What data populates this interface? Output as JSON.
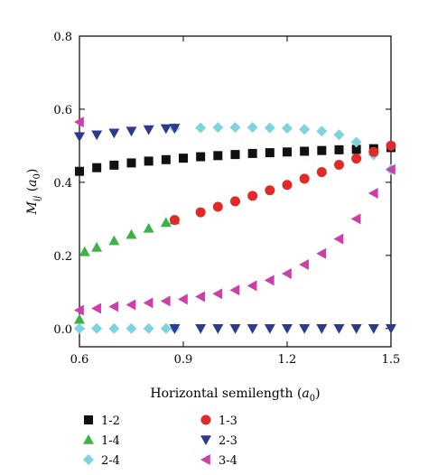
{
  "chart_data": {
    "type": "scatter",
    "xlabel_main": "Horizontal semilength (",
    "xlabel_sym": "a",
    "xlabel_sub": "0",
    "xlabel_end": ")",
    "ylabel_main": "M",
    "ylabel_sub": "ij",
    "ylabel_mid": " (",
    "ylabel_sym": "a",
    "ylabel_sub2": "0",
    "ylabel_end": ")",
    "xlim": [
      0.6,
      1.5
    ],
    "ylim": [
      -0.05,
      0.8
    ],
    "xticks": [
      0.6,
      0.9,
      1.2,
      1.5
    ],
    "xtick_labels": [
      "0.6",
      "0.9",
      "1.2",
      "1.5"
    ],
    "yticks": [
      0.0,
      0.2,
      0.4,
      0.6,
      0.8
    ],
    "ytick_labels": [
      "0.0",
      "0.2",
      "0.4",
      "0.6",
      "0.8"
    ],
    "grid": false,
    "legend_position": "bottom",
    "series": [
      {
        "name": "1-2",
        "marker": "square",
        "color": "#111111",
        "points": [
          [
            0.6,
            0.43
          ],
          [
            0.65,
            0.44
          ],
          [
            0.7,
            0.447
          ],
          [
            0.75,
            0.453
          ],
          [
            0.8,
            0.458
          ],
          [
            0.85,
            0.462
          ],
          [
            0.9,
            0.466
          ],
          [
            0.95,
            0.47
          ],
          [
            1.0,
            0.473
          ],
          [
            1.05,
            0.476
          ],
          [
            1.1,
            0.479
          ],
          [
            1.15,
            0.481
          ],
          [
            1.2,
            0.483
          ],
          [
            1.25,
            0.485
          ],
          [
            1.3,
            0.487
          ],
          [
            1.35,
            0.489
          ],
          [
            1.4,
            0.49
          ],
          [
            1.45,
            0.492
          ],
          [
            1.5,
            0.495
          ]
        ]
      },
      {
        "name": "1-4",
        "marker": "triangle-up",
        "color": "#3cb34a",
        "points": [
          [
            0.6,
            0.025
          ],
          [
            0.615,
            0.21
          ],
          [
            0.65,
            0.222
          ],
          [
            0.7,
            0.24
          ],
          [
            0.75,
            0.257
          ],
          [
            0.8,
            0.274
          ],
          [
            0.85,
            0.29
          ],
          [
            0.875,
            0.297
          ]
        ]
      },
      {
        "name": "2-4",
        "marker": "diamond",
        "color": "#7fd3e0",
        "points": [
          [
            0.6,
            0.0
          ],
          [
            0.65,
            0.0
          ],
          [
            0.7,
            0.0
          ],
          [
            0.75,
            0.0
          ],
          [
            0.8,
            0.0
          ],
          [
            0.85,
            0.0
          ],
          [
            0.875,
            0.0
          ],
          [
            0.875,
            0.548
          ],
          [
            0.95,
            0.549
          ],
          [
            1.0,
            0.55
          ],
          [
            1.05,
            0.55
          ],
          [
            1.1,
            0.55
          ],
          [
            1.15,
            0.549
          ],
          [
            1.2,
            0.548
          ],
          [
            1.25,
            0.545
          ],
          [
            1.3,
            0.54
          ],
          [
            1.35,
            0.53
          ],
          [
            1.4,
            0.51
          ],
          [
            1.45,
            0.475
          ],
          [
            1.5,
            0.435
          ]
        ]
      },
      {
        "name": "1-3",
        "marker": "circle",
        "color": "#e02a2a",
        "points": [
          [
            0.875,
            0.297
          ],
          [
            0.95,
            0.318
          ],
          [
            1.0,
            0.333
          ],
          [
            1.05,
            0.348
          ],
          [
            1.1,
            0.363
          ],
          [
            1.15,
            0.378
          ],
          [
            1.2,
            0.393
          ],
          [
            1.25,
            0.41
          ],
          [
            1.3,
            0.428
          ],
          [
            1.35,
            0.448
          ],
          [
            1.4,
            0.465
          ],
          [
            1.45,
            0.483
          ],
          [
            1.5,
            0.5
          ]
        ]
      },
      {
        "name": "2-3",
        "marker": "triangle-down",
        "color": "#2e3a8c",
        "points": [
          [
            0.6,
            0.525
          ],
          [
            0.65,
            0.53
          ],
          [
            0.7,
            0.535
          ],
          [
            0.75,
            0.54
          ],
          [
            0.8,
            0.544
          ],
          [
            0.85,
            0.547
          ],
          [
            0.875,
            0.548
          ],
          [
            0.875,
            0.0
          ],
          [
            0.95,
            0.0
          ],
          [
            1.0,
            0.0
          ],
          [
            1.05,
            0.0
          ],
          [
            1.1,
            0.0
          ],
          [
            1.15,
            0.0
          ],
          [
            1.2,
            0.0
          ],
          [
            1.25,
            0.0
          ],
          [
            1.3,
            0.0
          ],
          [
            1.35,
            0.0
          ],
          [
            1.4,
            0.0
          ],
          [
            1.45,
            0.0
          ],
          [
            1.5,
            0.0
          ]
        ]
      },
      {
        "name": "3-4",
        "marker": "triangle-left",
        "color": "#cc3ea8",
        "points": [
          [
            0.6,
            0.565
          ],
          [
            0.6,
            0.05
          ],
          [
            0.65,
            0.055
          ],
          [
            0.7,
            0.06
          ],
          [
            0.75,
            0.065
          ],
          [
            0.8,
            0.07
          ],
          [
            0.85,
            0.075
          ],
          [
            0.9,
            0.08
          ],
          [
            0.95,
            0.087
          ],
          [
            1.0,
            0.095
          ],
          [
            1.05,
            0.105
          ],
          [
            1.1,
            0.117
          ],
          [
            1.15,
            0.132
          ],
          [
            1.2,
            0.15
          ],
          [
            1.25,
            0.175
          ],
          [
            1.3,
            0.205
          ],
          [
            1.35,
            0.245
          ],
          [
            1.4,
            0.3
          ],
          [
            1.45,
            0.37
          ],
          [
            1.5,
            0.435
          ]
        ]
      }
    ],
    "legend": [
      {
        "series": 0
      },
      {
        "series": 3
      },
      {
        "series": 1
      },
      {
        "series": 4
      },
      {
        "series": 2
      },
      {
        "series": 5
      }
    ]
  }
}
